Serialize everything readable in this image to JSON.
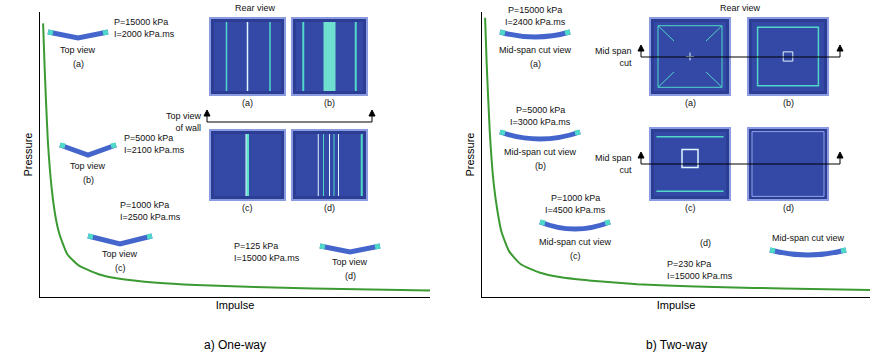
{
  "chart_data": [
    {
      "type": "line",
      "caption": "a) One-way",
      "x_label": "Impulse",
      "y_label": "Pressure",
      "color": "#3c9a32",
      "grid": false,
      "tick_labels": false,
      "xlim": [
        0,
        100
      ],
      "ylim": [
        0,
        100
      ],
      "xticks": [],
      "yticks": [],
      "x": [
        0.8,
        1.2,
        2,
        3,
        4,
        5,
        7,
        10,
        15,
        20,
        30,
        40,
        55,
        70,
        85,
        100
      ],
      "values": [
        96,
        80,
        55,
        38,
        28,
        22,
        15,
        11,
        8,
        6.5,
        5,
        4.2,
        3.5,
        3,
        2.6,
        2.3
      ],
      "annotations": [
        "Rear view",
        "(a)",
        "(b)",
        "Top view of wall",
        "(c)",
        "(d)",
        "P=15000 kPa",
        "I=2000 kPa.ms",
        "Top view",
        "(a)",
        "P=5000 kPa",
        "I=2100 kPa.ms",
        "Top view",
        "(b)",
        "P=1000 kPa",
        "I=2500 kPa.ms",
        "Top view",
        "(c)",
        "P=125 kPa",
        "I=15000 kPa.ms",
        "Top view",
        "(d)"
      ]
    },
    {
      "type": "line",
      "caption": "b) Two-way",
      "x_label": "Impulse",
      "y_label": "Pressure",
      "color": "#3c9a32",
      "grid": false,
      "tick_labels": false,
      "xlim": [
        0,
        100
      ],
      "ylim": [
        0,
        100
      ],
      "xticks": [],
      "yticks": [],
      "x": [
        0.8,
        1.2,
        2,
        3,
        4,
        5,
        7,
        10,
        15,
        20,
        30,
        40,
        55,
        70,
        85,
        100
      ],
      "values": [
        98,
        82,
        58,
        40,
        30,
        23,
        16,
        11.5,
        8.5,
        7,
        5.5,
        4.5,
        3.7,
        3.2,
        2.8,
        2.5
      ],
      "annotations": [
        "Rear view",
        "Mid span cut",
        "(a)",
        "(b)",
        "Mid span cut",
        "(c)",
        "(d)",
        "P=15000 kPa",
        "I=2400 kPa.ms",
        "Mid-span cut view",
        "(a)",
        "P=5000 kPa",
        "I=3000 kPa.ms",
        "Mid-span cut view",
        "(b)",
        "P=1000 kPa",
        "I=4500 kPa.ms",
        "Mid-span cut view",
        "(c)",
        "P=230 kPa",
        "I=15000 kPa.ms",
        "Mid-span cut view",
        "(d)"
      ]
    }
  ]
}
